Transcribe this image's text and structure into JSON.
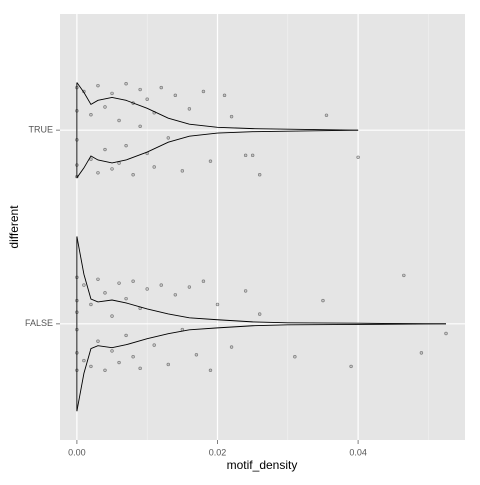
{
  "chart_data": {
    "type": "violin",
    "xlabel": "motif_density",
    "ylabel": "different",
    "categories": [
      "FALSE",
      "TRUE"
    ],
    "xlim": [
      -0.0024,
      0.0552
    ],
    "xticks": [
      {
        "value": 0,
        "label": "0.00"
      },
      {
        "value": 0.02,
        "label": "0.02"
      },
      {
        "value": 0.04,
        "label": "0.04"
      }
    ],
    "xminor": [
      0.01,
      0.03,
      0.05
    ],
    "ylim": [
      0.4,
      2.6
    ],
    "grid": true,
    "violins": [
      {
        "x": [
          0,
          0.001,
          0.002,
          0.003,
          0.005,
          0.007,
          0.01,
          0.013,
          0.016,
          0.02,
          0.025,
          0.03,
          0.04,
          0.0525
        ],
        "width": [
          0.451,
          0.256,
          0.128,
          0.113,
          0.123,
          0.108,
          0.077,
          0.051,
          0.031,
          0.021,
          0.01,
          0.005,
          0.003,
          0
        ]
      },
      {
        "x": [
          0,
          0.001,
          0.002,
          0.003,
          0.005,
          0.007,
          0.01,
          0.013,
          0.016,
          0.02,
          0.025,
          0.03,
          0.04
        ],
        "width": [
          0.246,
          0.195,
          0.133,
          0.154,
          0.169,
          0.154,
          0.113,
          0.062,
          0.031,
          0.015,
          0.008,
          0.005,
          0
        ]
      }
    ],
    "points": [
      {
        "x": [
          0,
          0,
          0,
          0,
          0,
          0,
          0.001,
          0.001,
          0.002,
          0.002,
          0.003,
          0.003,
          0.004,
          0.004,
          0.005,
          0.005,
          0.006,
          0.006,
          0.007,
          0.007,
          0.008,
          0.008,
          0.009,
          0.009,
          0.01,
          0.011,
          0.012,
          0.013,
          0.014,
          0.015,
          0.016,
          0.017,
          0.018,
          0.019,
          0.02,
          0.022,
          0.024,
          0.026,
          0.031,
          0.035,
          0.039,
          0.0465,
          0.049,
          0.0525
        ],
        "jitter": [
          0.24,
          0.12,
          -0.03,
          -0.15,
          -0.24,
          0.06,
          0.2,
          -0.19,
          0.1,
          -0.22,
          0.23,
          -0.09,
          0.16,
          -0.24,
          0.04,
          -0.14,
          0.21,
          -0.2,
          0.13,
          -0.06,
          0.22,
          -0.17,
          0.08,
          -0.23,
          0.18,
          -0.11,
          0.2,
          -0.21,
          0.15,
          -0.03,
          0.19,
          -0.16,
          0.22,
          -0.24,
          0.1,
          -0.12,
          0.17,
          0.05,
          -0.17,
          0.12,
          -0.22,
          0.25,
          -0.15,
          -0.05
        ]
      },
      {
        "x": [
          0,
          0,
          0,
          0,
          0,
          0.001,
          0.002,
          0.002,
          0.003,
          0.003,
          0.004,
          0.004,
          0.005,
          0.005,
          0.006,
          0.006,
          0.007,
          0.007,
          0.008,
          0.008,
          0.009,
          0.009,
          0.01,
          0.01,
          0.011,
          0.011,
          0.012,
          0.013,
          0.014,
          0.015,
          0.016,
          0.018,
          0.019,
          0.021,
          0.022,
          0.024,
          0.025,
          0.026,
          0.0355,
          0.04
        ],
        "jitter": [
          0.22,
          0.1,
          -0.05,
          -0.18,
          -0.24,
          0.2,
          -0.15,
          0.08,
          0.23,
          -0.22,
          0.12,
          -0.1,
          0.19,
          -0.2,
          0.05,
          -0.17,
          0.24,
          -0.08,
          0.14,
          -0.23,
          0.02,
          0.21,
          -0.12,
          0.16,
          -0.19,
          0.09,
          0.22,
          -0.04,
          0.18,
          -0.21,
          0.11,
          0.2,
          -0.16,
          0.18,
          0.07,
          -0.13,
          -0.13,
          -0.23,
          0.077,
          -0.14
        ]
      }
    ]
  }
}
